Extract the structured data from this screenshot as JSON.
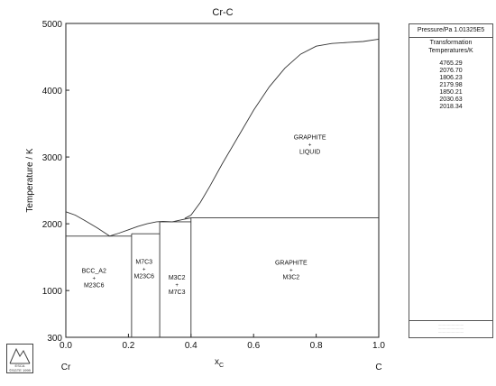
{
  "chart_data": {
    "type": "line",
    "title": "Cr-C",
    "xlabel": "x_C",
    "x_label_main": "x",
    "x_label_sub": "C",
    "ylabel": "Temperature / K",
    "xlim": [
      0.0,
      1.0
    ],
    "ylim": [
      300,
      5000
    ],
    "x_ticks": [
      "0.0",
      "0.2",
      "0.4",
      "0.6",
      "0.8",
      "1.0"
    ],
    "y_ticks": [
      "300",
      "1000",
      "2000",
      "3000",
      "4000",
      "5000"
    ],
    "x_end_labels": [
      "Cr",
      "C"
    ],
    "series": [
      {
        "points": [
          [
            0.0,
            2180
          ],
          [
            0.03,
            2130
          ],
          [
            0.06,
            2050
          ],
          [
            0.1,
            1940
          ],
          [
            0.14,
            1815
          ]
        ]
      },
      {
        "points": [
          [
            0.14,
            1815
          ],
          [
            0.17,
            1860
          ],
          [
            0.2,
            1910
          ],
          [
            0.23,
            1960
          ],
          [
            0.26,
            2000
          ],
          [
            0.29,
            2030
          ],
          [
            0.31,
            2035
          ],
          [
            0.34,
            2030
          ],
          [
            0.37,
            2060
          ],
          [
            0.4,
            2090
          ]
        ]
      },
      {
        "points": [
          [
            0.38,
            2080
          ],
          [
            0.4,
            2130
          ],
          [
            0.43,
            2320
          ],
          [
            0.46,
            2560
          ],
          [
            0.5,
            2900
          ],
          [
            0.55,
            3300
          ],
          [
            0.6,
            3700
          ],
          [
            0.65,
            4050
          ],
          [
            0.7,
            4330
          ],
          [
            0.75,
            4540
          ],
          [
            0.8,
            4660
          ],
          [
            0.85,
            4700
          ],
          [
            0.9,
            4715
          ],
          [
            0.95,
            4730
          ],
          [
            1.0,
            4765
          ]
        ]
      },
      {
        "points": [
          [
            0.4,
            2088
          ],
          [
            1.0,
            2088
          ]
        ]
      },
      {
        "points": [
          [
            0.0,
            1815
          ],
          [
            0.21,
            1815
          ]
        ]
      },
      {
        "points": [
          [
            0.21,
            1850
          ],
          [
            0.3,
            1850
          ]
        ]
      },
      {
        "points": [
          [
            0.3,
            2030
          ],
          [
            0.4,
            2030
          ]
        ]
      },
      {
        "points": [
          [
            0.21,
            300
          ],
          [
            0.21,
            1850
          ]
        ]
      },
      {
        "points": [
          [
            0.3,
            300
          ],
          [
            0.3,
            2030
          ]
        ]
      },
      {
        "points": [
          [
            0.4,
            300
          ],
          [
            0.4,
            2088
          ]
        ]
      }
    ],
    "region_labels": [
      {
        "text": [
          "BCC_A2",
          "+",
          "M23C6"
        ],
        "x": 0.09,
        "y": 1200
      },
      {
        "text": [
          "M7C3",
          "+",
          "M23C6"
        ],
        "x": 0.25,
        "y": 1330
      },
      {
        "text": [
          "M3C2",
          "+",
          "M7C3"
        ],
        "x": 0.355,
        "y": 1100
      },
      {
        "text": [
          "GRAPHITE",
          "+",
          "M3C2"
        ],
        "x": 0.72,
        "y": 1320
      },
      {
        "text": [
          "GRAPHITE",
          "+",
          "LIQUID"
        ],
        "x": 0.78,
        "y": 3200
      }
    ],
    "grid": false
  },
  "panel": {
    "header": "Pressure/Pa  1.01325E5",
    "subtitle_line1": "Transformation",
    "subtitle_line2": "Temperatures/K",
    "values": [
      "4765.29",
      "2076.70",
      "1806.23",
      "2179.98",
      "1850.21",
      "2030.63",
      "2018.34"
    ]
  },
  "logo": {
    "text": "ESCA",
    "subtext": "©SGTE 1999"
  }
}
